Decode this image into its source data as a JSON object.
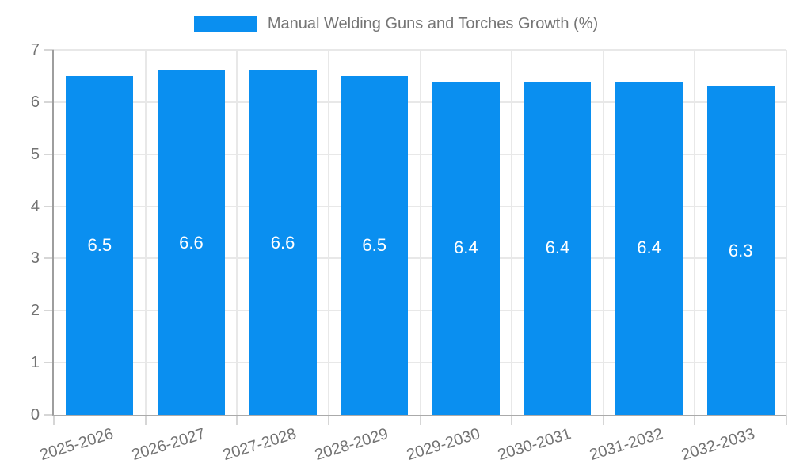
{
  "legend": {
    "label": "Manual Welding Guns and Torches Growth (%)"
  },
  "chart_data": {
    "type": "bar",
    "title": "",
    "series_name": "Manual Welding Guns and Torches Growth (%)",
    "categories": [
      "2025-2026",
      "2026-2027",
      "2027-2028",
      "2028-2029",
      "2029-2030",
      "2030-2031",
      "2031-2032",
      "2032-2033"
    ],
    "values": [
      6.5,
      6.6,
      6.6,
      6.5,
      6.4,
      6.4,
      6.4,
      6.3
    ],
    "value_labels": [
      "6.5",
      "6.6",
      "6.6",
      "6.5",
      "6.4",
      "6.4",
      "6.4",
      "6.3"
    ],
    "xlabel": "",
    "ylabel": "",
    "ylim": [
      0,
      7
    ],
    "yticks": [
      0,
      1,
      2,
      3,
      4,
      5,
      6,
      7
    ],
    "grid": true,
    "legend_position": "top",
    "bar_color": "#0a8ff0"
  },
  "colors": {
    "bar": "#0a8ff0",
    "grid": "#e8e8e8",
    "axis": "#9e9e9e",
    "text": "#737373",
    "value_label": "#ffffff",
    "background": "#ffffff"
  }
}
